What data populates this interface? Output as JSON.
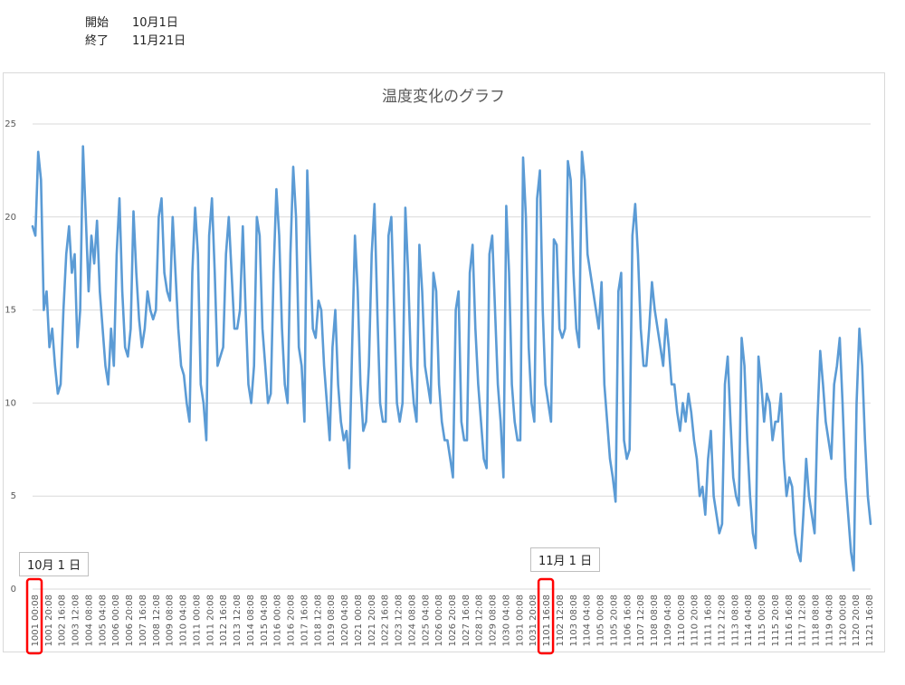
{
  "header": {
    "start_label": "開始",
    "start_value": "10月1日",
    "end_label": "終了",
    "end_value": "11月21日"
  },
  "annotations": {
    "oct1": "10月 1 日",
    "nov1": "11月 1 日"
  },
  "colors": {
    "series": "#5b9bd5",
    "highlight": "#ff0000",
    "grid": "#d9d9d9"
  },
  "chart_data": {
    "type": "line",
    "title": "温度変化のグラフ",
    "xlabel": "",
    "ylabel": "",
    "ylim": [
      0,
      25
    ],
    "yticks": [
      0,
      5,
      10,
      15,
      20,
      25
    ],
    "grid": true,
    "x_tick_labels": [
      "1001 00:08",
      "1001 20:08",
      "1002 16:08",
      "1003 12:08",
      "1004 08:08",
      "1005 04:08",
      "1006 00:08",
      "1006 20:08",
      "1007 16:08",
      "1008 12:08",
      "1009 08:08",
      "1010 04:08",
      "1011 00:08",
      "1011 20:08",
      "1012 16:08",
      "1013 12:08",
      "1014 08:08",
      "1015 04:08",
      "1016 00:08",
      "1016 20:08",
      "1017 16:08",
      "1018 12:08",
      "1019 08:08",
      "1020 04:08",
      "1021 00:08",
      "1021 20:08",
      "1022 16:08",
      "1023 12:08",
      "1024 08:08",
      "1025 04:08",
      "1026 00:08",
      "1026 20:08",
      "1027 16:08",
      "1028 12:08",
      "1029 08:08",
      "1030 04:08",
      "1031 00:08",
      "1031 20:08",
      "1101 16:08",
      "1102 12:08",
      "1103 08:08",
      "1104 04:08",
      "1105 00:08",
      "1105 20:08",
      "1106 16:08",
      "1107 12:08",
      "1108 08:08",
      "1109 04:08",
      "1110 00:08",
      "1110 20:08",
      "1111 16:08",
      "1112 12:08",
      "1113 08:08",
      "1114 04:08",
      "1115 00:08",
      "1115 20:08",
      "1116 16:08",
      "1117 12:08",
      "1118 08:08",
      "1119 04:08",
      "1120 00:08",
      "1120 20:08",
      "1121 16:08"
    ],
    "highlighted_ticks": [
      0,
      38
    ],
    "series": [
      {
        "values": [
          19.5,
          19,
          23.5,
          22,
          15,
          16,
          13,
          14,
          12,
          10.5,
          11,
          15,
          18,
          19.5,
          17,
          18,
          13,
          15,
          23.8,
          20,
          16,
          19,
          17.5,
          19.8,
          16,
          14,
          12,
          11,
          14,
          12,
          18,
          21,
          16,
          13,
          12.5,
          14,
          20.3,
          17,
          14.5,
          13,
          14,
          16,
          15,
          14.5,
          15,
          20,
          21,
          17,
          16,
          15.5,
          20,
          17,
          14,
          12,
          11.5,
          10,
          9,
          17,
          20.5,
          18,
          11,
          10,
          8,
          19,
          21,
          17,
          12,
          12.5,
          13,
          18,
          20,
          17,
          14,
          14,
          15,
          19.5,
          15,
          11,
          10,
          12,
          20,
          19,
          14,
          12,
          10,
          10.5,
          17,
          21.5,
          19,
          14,
          11,
          10,
          18,
          22.7,
          20,
          13,
          12,
          9,
          22.5,
          18,
          14,
          13.5,
          15.5,
          15,
          12,
          10,
          8,
          13,
          15,
          11,
          9,
          8,
          8.5,
          6.5,
          13,
          19,
          16,
          11,
          8.5,
          9,
          12,
          18,
          20.7,
          15,
          10,
          9,
          9,
          19,
          20,
          15,
          10,
          9,
          10,
          20.5,
          17,
          12,
          10,
          9,
          18.5,
          16,
          12,
          11,
          10,
          17,
          16,
          11,
          9,
          8,
          8,
          7,
          6,
          15,
          16,
          9,
          8,
          8,
          17,
          18.5,
          14,
          11,
          9,
          7,
          6.5,
          18,
          19,
          15,
          11,
          9,
          6,
          20.6,
          17,
          11,
          9,
          8,
          8,
          23.2,
          20,
          13,
          10,
          9,
          21,
          22.5,
          15,
          11,
          10,
          9,
          18.8,
          18.5,
          14,
          13.5,
          14,
          23,
          22,
          17,
          14,
          13,
          23.5,
          22,
          18,
          17,
          16,
          15,
          14,
          16.5,
          11,
          9,
          7,
          6,
          4.7,
          16,
          17,
          8,
          7,
          7.5,
          19,
          20.7,
          18,
          14,
          12,
          12,
          14,
          16.5,
          15,
          14,
          13,
          12,
          14.5,
          13,
          11,
          11,
          9.5,
          8.5,
          10,
          9,
          10.5,
          9.5,
          8,
          7,
          5,
          5.5,
          4,
          7,
          8.5,
          5,
          4,
          3,
          3.5,
          11,
          12.5,
          9,
          6,
          5,
          4.5,
          13.5,
          12,
          8,
          5,
          3,
          2.2,
          12.5,
          11,
          9,
          10.5,
          10,
          8,
          9,
          9,
          10.5,
          7,
          5,
          6,
          5.5,
          3,
          2,
          1.5,
          4,
          7,
          5,
          4,
          3,
          9,
          12.8,
          11,
          9,
          8,
          7,
          11,
          12,
          13.5,
          10,
          6,
          4,
          2,
          1,
          10,
          14,
          12,
          8,
          5,
          3.5
        ]
      }
    ]
  }
}
